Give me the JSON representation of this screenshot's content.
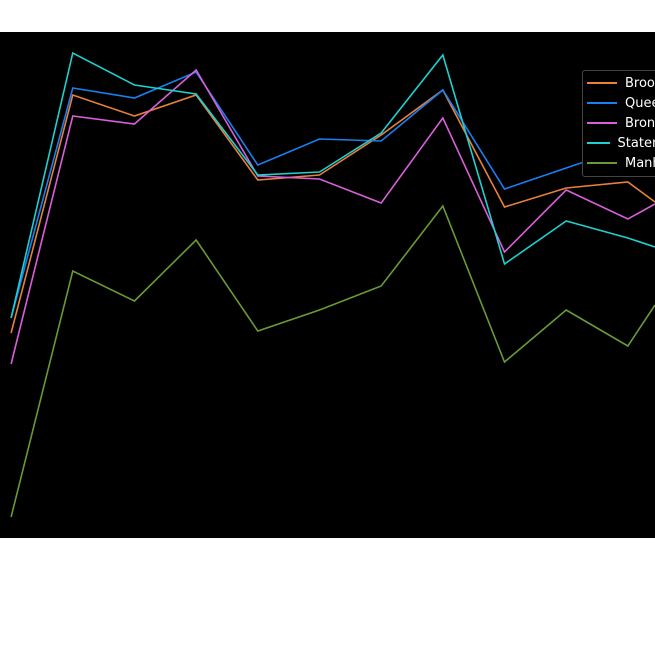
{
  "chart_data": {
    "type": "line",
    "title": "",
    "xlabel": "",
    "ylabel": "",
    "x": [
      0,
      1,
      2,
      3,
      4,
      5,
      6,
      7,
      8,
      9,
      10,
      10.44
    ],
    "xlim": [
      -0.18,
      10.44
    ],
    "ylim": [
      0,
      506
    ],
    "grid": false,
    "legend_placement": "top-right",
    "background": "#000000",
    "series": [
      {
        "name": "Brooklyn",
        "color": "#e8803a",
        "values": [
          205,
          443,
          422,
          443,
          358,
          363,
          403,
          448,
          331,
          350,
          356,
          336
        ]
      },
      {
        "name": "Queens",
        "color": "#1a7ff0",
        "values": [
          220,
          450,
          440,
          466,
          373,
          399,
          397,
          448,
          349,
          370,
          391,
          368
        ]
      },
      {
        "name": "Bronx",
        "color": "#d95fd9",
        "values": [
          174,
          422,
          414,
          468,
          362,
          359,
          335,
          420,
          286,
          348,
          319,
          334
        ]
      },
      {
        "name": "Staten Island",
        "color": "#1fd0d0",
        "values": [
          220,
          485,
          453,
          444,
          363,
          366,
          405,
          483,
          274,
          317,
          300,
          291
        ]
      },
      {
        "name": "Manhattan",
        "color": "#6a9a35",
        "values": [
          21,
          267,
          237,
          298,
          207,
          228,
          252,
          332,
          176,
          228,
          192,
          233
        ]
      }
    ]
  }
}
